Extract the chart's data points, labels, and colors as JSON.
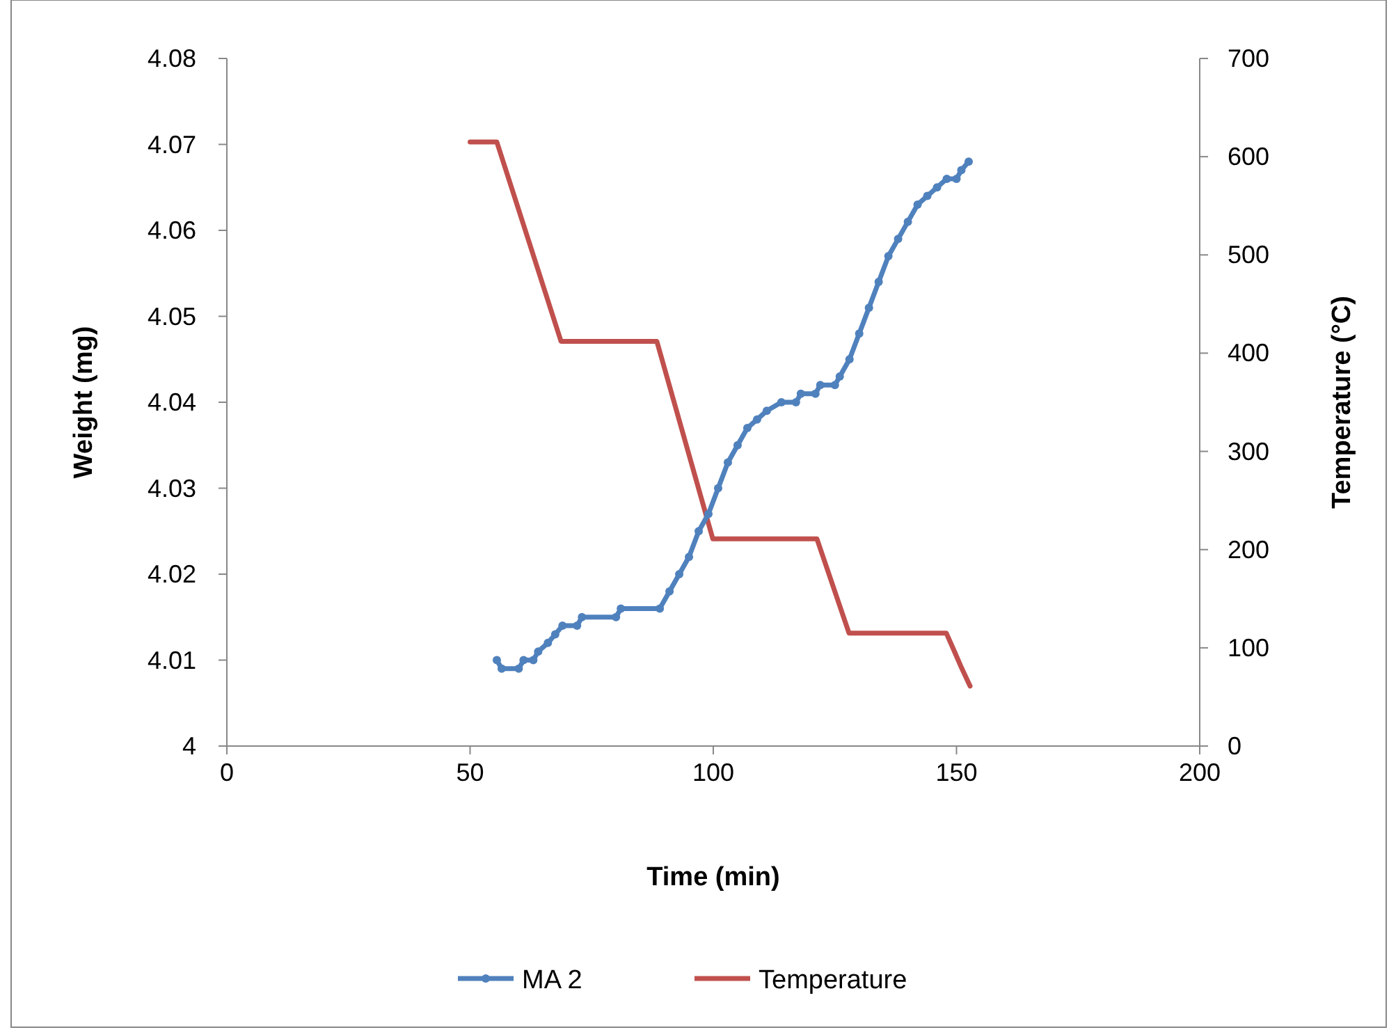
{
  "chart_data": {
    "type": "line",
    "xlabel": "Time (min)",
    "ylabel": "Weight (mg)",
    "y2label": "Temperature (°C)",
    "xlim": [
      0,
      200
    ],
    "xticks": [
      0,
      50,
      100,
      150,
      200
    ],
    "ylim": [
      4,
      4.08
    ],
    "yticks": [
      4,
      4.01,
      4.02,
      4.03,
      4.04,
      4.05,
      4.06,
      4.07,
      4.08
    ],
    "y2lim": [
      0,
      700
    ],
    "y2ticks": [
      0,
      100,
      200,
      300,
      400,
      500,
      600,
      700
    ],
    "grid": false,
    "legend": "bottom",
    "series": [
      {
        "name": "MA 2",
        "color": "#4f81bd",
        "marker": "circle",
        "x": [
          55.5,
          56.5,
          60,
          61,
          63,
          64,
          66,
          67.5,
          69,
          72,
          73,
          80,
          81,
          89,
          91,
          93,
          95,
          97,
          99,
          101,
          103,
          105,
          107,
          109,
          111,
          114,
          117,
          118,
          121,
          122,
          125,
          126,
          128,
          130,
          132,
          134,
          136,
          138,
          140,
          142,
          144,
          146,
          148,
          150,
          151,
          152.5
        ],
        "values": [
          4.01,
          4.009,
          4.009,
          4.01,
          4.01,
          4.011,
          4.012,
          4.013,
          4.014,
          4.014,
          4.015,
          4.015,
          4.016,
          4.016,
          4.018,
          4.02,
          4.022,
          4.025,
          4.027,
          4.03,
          4.033,
          4.035,
          4.037,
          4.038,
          4.039,
          4.04,
          4.04,
          4.041,
          4.041,
          4.042,
          4.042,
          4.043,
          4.045,
          4.048,
          4.051,
          4.054,
          4.057,
          4.059,
          4.061,
          4.063,
          4.064,
          4.065,
          4.066,
          4.066,
          4.067,
          4.068
        ]
      },
      {
        "name": "Temperature",
        "color": "#c0504d",
        "axis": "y2",
        "marker": "none",
        "x": [
          50,
          55.5,
          68.7,
          88.4,
          99.9,
          121.3,
          127.9,
          147.9,
          149.6,
          151,
          152.8
        ],
        "values": [
          615,
          615,
          412,
          412,
          211,
          211,
          115,
          115,
          96,
          80,
          61
        ]
      }
    ]
  }
}
